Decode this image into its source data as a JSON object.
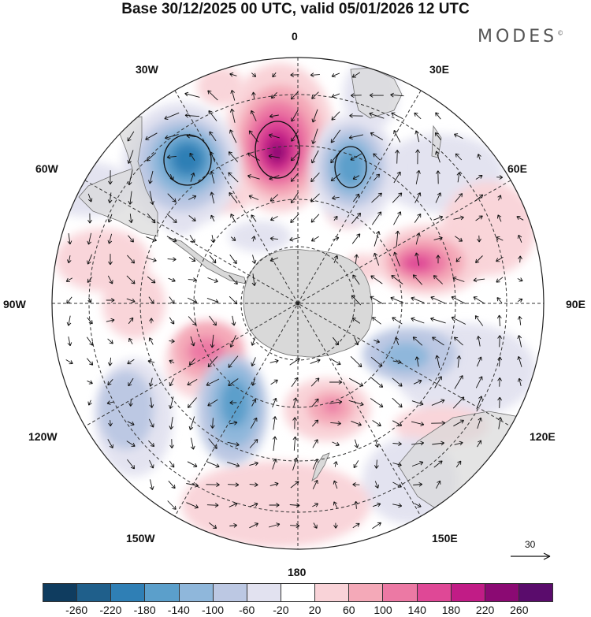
{
  "header": {
    "title": "Base 30/12/2025 00 UTC, valid 05/01/2026 12 UTC",
    "brand": "MODES",
    "brand_mark": "©"
  },
  "map": {
    "projection": "south-polar-stereographic",
    "longitude_labels": {
      "lon_0": "0",
      "lon_30e": "30E",
      "lon_60e": "60E",
      "lon_90e": "90E",
      "lon_120e": "120E",
      "lon_150e": "150E",
      "lon_180": "180",
      "lon_150w": "150W",
      "lon_120w": "120W",
      "lon_90w": "90W",
      "lon_60w": "60W",
      "lon_30w": "30W"
    },
    "reference_vector": "30",
    "land_color": "#d9d9d9"
  },
  "colorbar": {
    "colors": [
      "#0f3c5f",
      "#1f5f8b",
      "#2f7fb5",
      "#5b9fcb",
      "#8fb7db",
      "#bcc8e3",
      "#e2e2f0",
      "#ffffff",
      "#f9d3d8",
      "#f4a9b8",
      "#ec79a4",
      "#df4896",
      "#c11c86",
      "#8b0a73",
      "#5a0c6c"
    ],
    "tick_labels": [
      "-260",
      "-220",
      "-180",
      "-140",
      "-100",
      "-60",
      "-20",
      "20",
      "60",
      "100",
      "140",
      "180",
      "220",
      "260"
    ]
  }
}
